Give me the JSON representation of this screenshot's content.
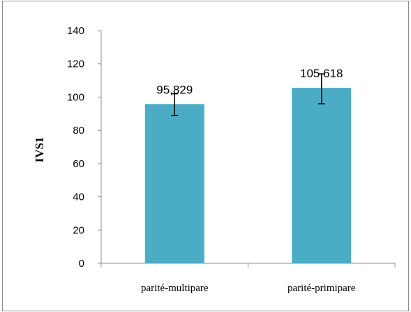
{
  "chart_data": {
    "type": "bar",
    "title": "",
    "xlabel": "",
    "ylabel": "IVS1",
    "categories": [
      "parité-multipare",
      "parité-primipare"
    ],
    "values": [
      95.829,
      105.618
    ],
    "data_labels": [
      "95,829",
      "105,618"
    ],
    "error_low": [
      89,
      96
    ],
    "error_high": [
      102,
      114
    ],
    "ylim": [
      0,
      140
    ],
    "yticks": [
      0,
      20,
      40,
      60,
      80,
      100,
      120,
      140
    ],
    "grid": false,
    "legend": "none",
    "bar_color": "#4bacc6"
  }
}
